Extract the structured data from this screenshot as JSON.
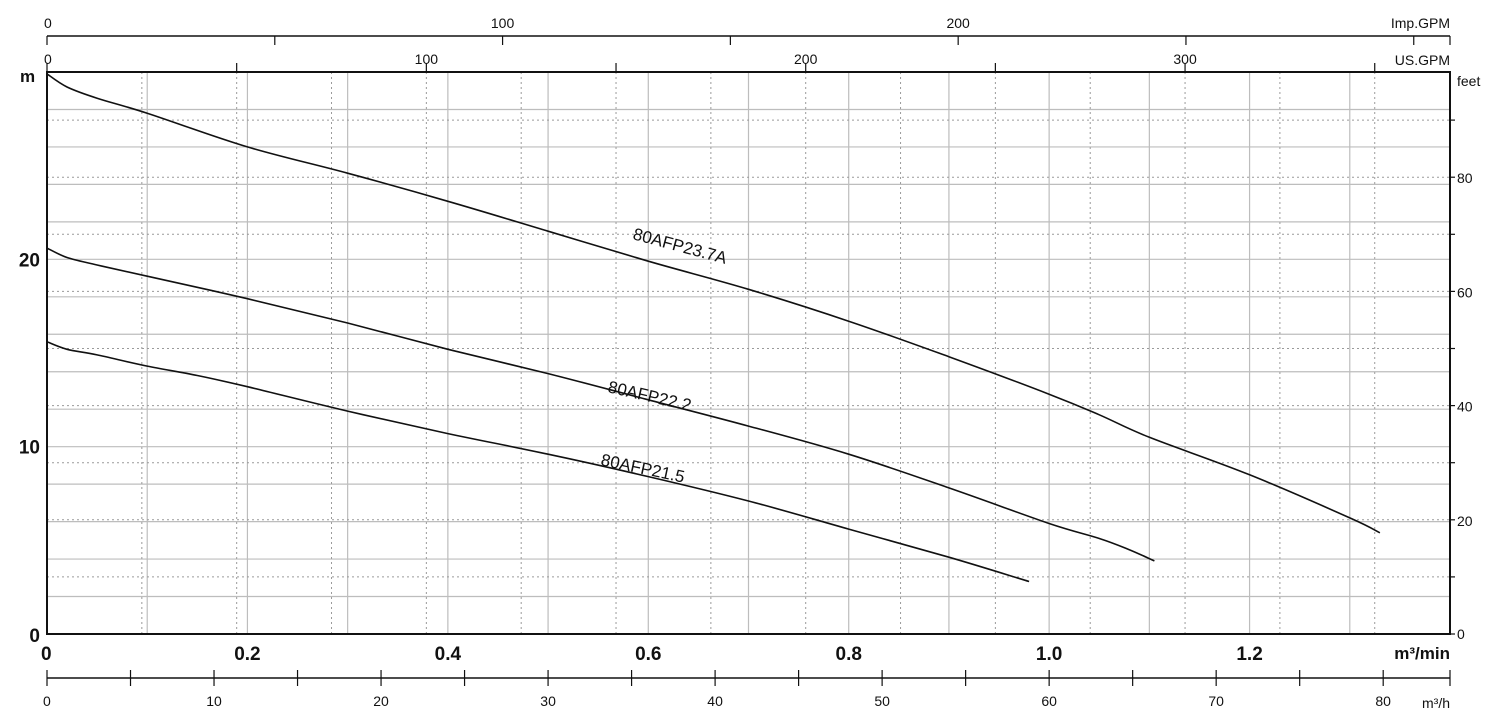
{
  "chart_data": {
    "type": "line",
    "title": "",
    "xlabel": "m³/min",
    "ylabel": "m",
    "xlim": [
      0,
      1.4
    ],
    "ylim": [
      0,
      30
    ],
    "x_ticks": [
      0,
      0.2,
      0.4,
      0.6,
      0.8,
      1.0,
      1.2
    ],
    "x_tick_labels": [
      "0",
      "0.2",
      "0.4",
      "0.6",
      "0.8",
      "1.0",
      "1.2"
    ],
    "y_ticks": [
      0,
      10,
      20
    ],
    "y_tick_labels": [
      "0",
      "10",
      "20"
    ],
    "grid": true,
    "secondary_axes": {
      "imp_gpm": {
        "label": "Imp.GPM",
        "ticks": [
          0,
          100,
          200
        ],
        "tick_labels": [
          "0",
          "100",
          "200"
        ]
      },
      "us_gpm": {
        "label": "US.GPM",
        "ticks": [
          0,
          100,
          200,
          300
        ],
        "tick_labels": [
          "0",
          "100",
          "200",
          "300"
        ]
      },
      "feet": {
        "label": "feet",
        "ticks": [
          0,
          20,
          40,
          60,
          80
        ],
        "tick_labels": [
          "0",
          "20",
          "40",
          "60",
          "80"
        ]
      },
      "m3h": {
        "label": "m³/h",
        "ticks": [
          0,
          10,
          20,
          30,
          40,
          50,
          60,
          70,
          80
        ],
        "tick_labels": [
          "0",
          "10",
          "20",
          "30",
          "40",
          "50",
          "60",
          "70",
          "80"
        ]
      }
    },
    "series": [
      {
        "name": "80AFP23.7A",
        "x": [
          0,
          0.02,
          0.05,
          0.1,
          0.2,
          0.3,
          0.4,
          0.5,
          0.6,
          0.7,
          0.8,
          0.9,
          1.0,
          1.05,
          1.1,
          1.2,
          1.3,
          1.33
        ],
        "y": [
          29.9,
          29.2,
          28.6,
          27.8,
          26.0,
          24.6,
          23.1,
          21.5,
          19.9,
          18.4,
          16.7,
          14.8,
          12.8,
          11.7,
          10.5,
          8.5,
          6.2,
          5.4
        ]
      },
      {
        "name": "80AFP22.2",
        "x": [
          0,
          0.02,
          0.05,
          0.1,
          0.2,
          0.3,
          0.4,
          0.5,
          0.6,
          0.7,
          0.8,
          0.9,
          1.0,
          1.05,
          1.08,
          1.105
        ],
        "y": [
          20.6,
          20.1,
          19.7,
          19.1,
          17.9,
          16.6,
          15.2,
          13.9,
          12.5,
          11.1,
          9.6,
          7.8,
          5.9,
          5.1,
          4.5,
          3.9
        ]
      },
      {
        "name": "80AFP21.5",
        "x": [
          0,
          0.02,
          0.05,
          0.1,
          0.15,
          0.2,
          0.3,
          0.4,
          0.5,
          0.6,
          0.7,
          0.8,
          0.9,
          0.98
        ],
        "y": [
          15.6,
          15.2,
          14.9,
          14.3,
          13.8,
          13.2,
          11.9,
          10.7,
          9.6,
          8.4,
          7.1,
          5.6,
          4.1,
          2.8
        ]
      }
    ],
    "colors": {
      "curve": "#111111",
      "grid": "#bdbdbd",
      "axis": "#111111"
    }
  }
}
